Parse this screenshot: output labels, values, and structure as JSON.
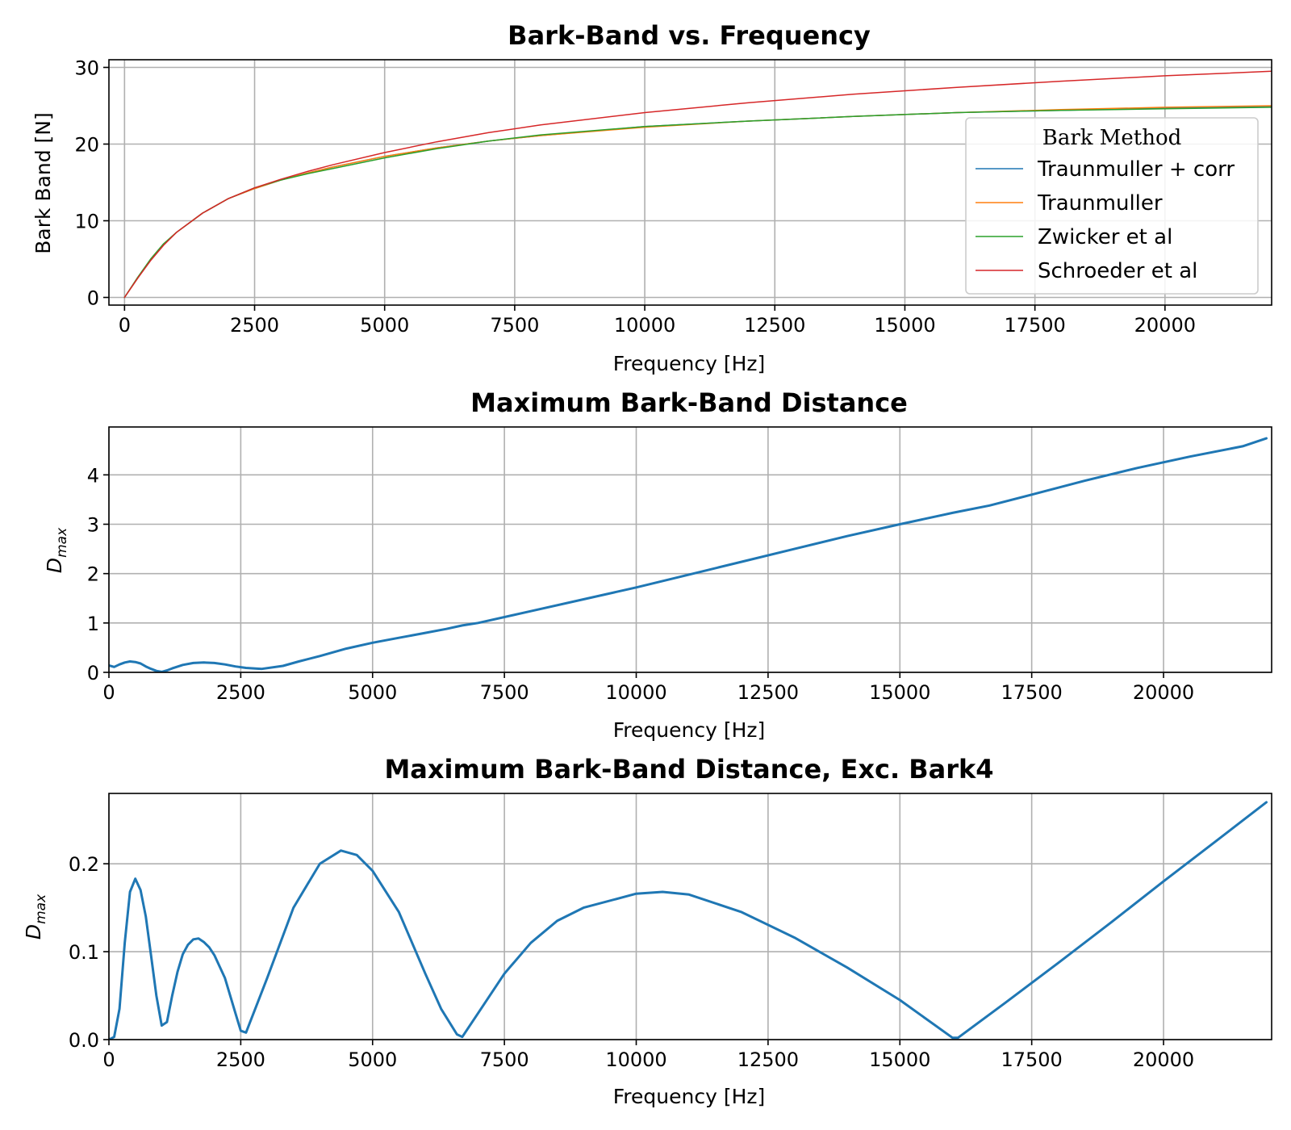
{
  "chart_data": [
    {
      "type": "line",
      "title": "Bark-Band vs. Frequency",
      "xlabel": "Frequency [Hz]",
      "ylabel": "Bark Band [N]",
      "xlim": [
        -300,
        22050
      ],
      "ylim": [
        -1,
        31
      ],
      "xticks": [
        0,
        2500,
        5000,
        7500,
        10000,
        12500,
        15000,
        17500,
        20000
      ],
      "yticks": [
        0,
        10,
        20,
        30
      ],
      "grid": true,
      "legend": {
        "title": "Bark Method",
        "position": "right"
      },
      "x": [
        0,
        250,
        500,
        750,
        1000,
        1500,
        2000,
        2500,
        3000,
        3500,
        4000,
        5000,
        6000,
        7000,
        8000,
        10000,
        12000,
        14000,
        16000,
        18000,
        20000,
        22050
      ],
      "series": [
        {
          "name": "Traunmuller + corr",
          "color": "#1f77b4",
          "line_width": 1.5,
          "values": [
            0,
            2.5,
            4.9,
            6.9,
            8.5,
            11.0,
            12.9,
            14.2,
            15.3,
            16.2,
            17.0,
            18.4,
            19.5,
            20.4,
            21.1,
            22.3,
            23.0,
            23.6,
            24.1,
            24.4,
            24.7,
            24.9
          ]
        },
        {
          "name": "Traunmuller",
          "color": "#ff7f0e",
          "line_width": 1.5,
          "values": [
            0,
            2.5,
            4.9,
            6.9,
            8.5,
            11.0,
            12.9,
            14.2,
            15.3,
            16.2,
            17.0,
            18.4,
            19.5,
            20.4,
            21.1,
            22.2,
            23.0,
            23.6,
            24.1,
            24.5,
            24.8,
            25.0
          ]
        },
        {
          "name": "Zwicker et al",
          "color": "#2ca02c",
          "line_width": 1.5,
          "values": [
            0,
            2.6,
            5.0,
            7.0,
            8.5,
            11.0,
            12.9,
            14.3,
            15.3,
            16.1,
            16.8,
            18.2,
            19.4,
            20.4,
            21.2,
            22.3,
            23.0,
            23.6,
            24.1,
            24.4,
            24.6,
            24.8
          ]
        },
        {
          "name": "Schroeder et al",
          "color": "#d62728",
          "line_width": 1.5,
          "values": [
            0,
            2.5,
            4.8,
            6.8,
            8.5,
            11.0,
            12.9,
            14.3,
            15.4,
            16.4,
            17.3,
            18.9,
            20.3,
            21.5,
            22.5,
            24.1,
            25.4,
            26.5,
            27.4,
            28.2,
            28.9,
            29.5
          ]
        }
      ]
    },
    {
      "type": "line",
      "title": "Maximum Bark-Band Distance",
      "xlabel": "Frequency [Hz]",
      "ylabel": "D_max",
      "xlim": [
        0,
        22050
      ],
      "ylim": [
        0,
        4.97
      ],
      "xticks": [
        0,
        2500,
        5000,
        7500,
        10000,
        12500,
        15000,
        17500,
        20000
      ],
      "yticks": [
        0,
        1,
        2,
        3,
        4
      ],
      "grid": true,
      "series": [
        {
          "name": "",
          "color": "#1f77b4",
          "line_width": 3,
          "x": [
            0,
            100,
            200,
            300,
            400,
            500,
            600,
            700,
            800,
            900,
            1000,
            1100,
            1200,
            1400,
            1600,
            1800,
            2000,
            2200,
            2400,
            2600,
            2900,
            3300,
            3600,
            4000,
            4500,
            5000,
            5500,
            6000,
            6400,
            6700,
            7000,
            8000,
            9000,
            10000,
            11000,
            12000,
            13000,
            14000,
            15000,
            16000,
            16700,
            17500,
            18500,
            19500,
            20500,
            21500,
            21950
          ],
          "values": [
            0.14,
            0.11,
            0.16,
            0.2,
            0.22,
            0.21,
            0.18,
            0.12,
            0.07,
            0.03,
            0.01,
            0.04,
            0.08,
            0.15,
            0.19,
            0.2,
            0.19,
            0.16,
            0.12,
            0.09,
            0.07,
            0.13,
            0.22,
            0.33,
            0.48,
            0.6,
            0.7,
            0.8,
            0.88,
            0.95,
            1.0,
            1.24,
            1.48,
            1.72,
            1.98,
            2.24,
            2.5,
            2.76,
            3.0,
            3.23,
            3.38,
            3.6,
            3.88,
            4.14,
            4.37,
            4.58,
            4.74
          ]
        }
      ]
    },
    {
      "type": "line",
      "title": "Maximum Bark-Band Distance, Exc. Bark4",
      "xlabel": "Frequency [Hz]",
      "ylabel": "D_max",
      "xlim": [
        0,
        22050
      ],
      "ylim": [
        0,
        0.28
      ],
      "xticks": [
        0,
        2500,
        5000,
        7500,
        10000,
        12500,
        15000,
        17500,
        20000
      ],
      "yticks": [
        0.0,
        0.1,
        0.2
      ],
      "ytick_labels": [
        "0.0",
        "0.1",
        "0.2"
      ],
      "grid": true,
      "series": [
        {
          "name": "",
          "color": "#1f77b4",
          "line_width": 3,
          "x": [
            0,
            100,
            200,
            300,
            400,
            500,
            600,
            700,
            800,
            900,
            1000,
            1100,
            1200,
            1300,
            1400,
            1500,
            1600,
            1700,
            1800,
            1900,
            2000,
            2200,
            2400,
            2500,
            2600,
            3000,
            3500,
            4000,
            4400,
            4700,
            5000,
            5500,
            6000,
            6300,
            6600,
            6700,
            7000,
            7500,
            8000,
            8500,
            9000,
            10000,
            10500,
            11000,
            12000,
            13000,
            14000,
            15000,
            16000,
            16100,
            17000,
            18000,
            19000,
            20000,
            21000,
            21950
          ],
          "values": [
            0.0,
            0.003,
            0.035,
            0.11,
            0.168,
            0.183,
            0.17,
            0.14,
            0.095,
            0.05,
            0.016,
            0.02,
            0.05,
            0.077,
            0.097,
            0.108,
            0.114,
            0.115,
            0.111,
            0.105,
            0.096,
            0.07,
            0.03,
            0.01,
            0.008,
            0.07,
            0.15,
            0.2,
            0.215,
            0.21,
            0.192,
            0.145,
            0.075,
            0.035,
            0.006,
            0.003,
            0.03,
            0.075,
            0.11,
            0.135,
            0.15,
            0.166,
            0.168,
            0.165,
            0.145,
            0.116,
            0.082,
            0.045,
            0.002,
            0.002,
            0.042,
            0.087,
            0.133,
            0.18,
            0.226,
            0.27
          ]
        }
      ]
    }
  ]
}
